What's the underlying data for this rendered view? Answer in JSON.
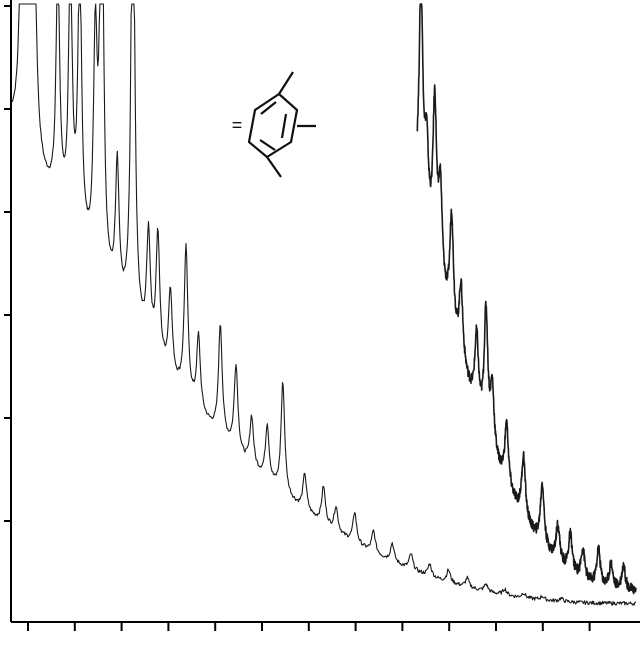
{
  "chart_data": {
    "type": "line",
    "title": "",
    "xlabel": "",
    "ylabel": "",
    "grid": false,
    "legend": "none",
    "series_color": "#1a1a1a",
    "x_tick_count": 13,
    "y_tick_count": 6,
    "xlim": [
      0,
      100
    ],
    "ylim": [
      0,
      100
    ],
    "annotation": {
      "equals_label": "=",
      "structure": "trimethylbenzene-icon"
    },
    "series": [
      {
        "decay": {
          "start": 80,
          "end": 3
        },
        "peaks": [
          [
            2,
            98
          ],
          [
            3.5,
            80
          ],
          [
            7.5,
            38
          ],
          [
            9.5,
            42
          ],
          [
            11,
            46
          ],
          [
            13.5,
            35
          ],
          [
            14.5,
            70
          ],
          [
            17,
            22
          ],
          [
            19.5,
            80
          ],
          [
            22,
            18
          ],
          [
            23.5,
            20
          ],
          [
            25.5,
            14
          ],
          [
            28,
            24
          ],
          [
            30,
            12
          ],
          [
            33.5,
            18
          ],
          [
            36,
            14
          ],
          [
            38.5,
            8
          ],
          [
            41,
            9
          ],
          [
            43.5,
            18
          ],
          [
            47,
            6
          ],
          [
            50,
            6
          ],
          [
            52,
            4
          ],
          [
            55,
            5
          ],
          [
            58,
            3.5
          ],
          [
            61,
            3
          ],
          [
            64,
            2.5
          ],
          [
            67,
            2
          ],
          [
            70,
            2
          ],
          [
            73,
            1.5
          ],
          [
            76,
            1.2
          ],
          [
            79,
            1
          ],
          [
            82,
            0.8
          ],
          [
            85,
            0.6
          ],
          [
            88,
            0.5
          ]
        ]
      },
      {
        "x_start": 65,
        "x_end": 100,
        "decay": {
          "start": 70,
          "end": 5
        },
        "peaks": [
          [
            65.6,
            35
          ],
          [
            66.5,
            12
          ],
          [
            67.8,
            25
          ],
          [
            68.7,
            15
          ],
          [
            70.5,
            18
          ],
          [
            72,
            12
          ],
          [
            74.5,
            12
          ],
          [
            76,
            20
          ],
          [
            77,
            10
          ],
          [
            79.3,
            10
          ],
          [
            82,
            10
          ],
          [
            85,
            10
          ],
          [
            87.5,
            6
          ],
          [
            89.5,
            6
          ],
          [
            91.5,
            5
          ],
          [
            94,
            6
          ],
          [
            96,
            4
          ],
          [
            98,
            4
          ]
        ]
      }
    ]
  }
}
